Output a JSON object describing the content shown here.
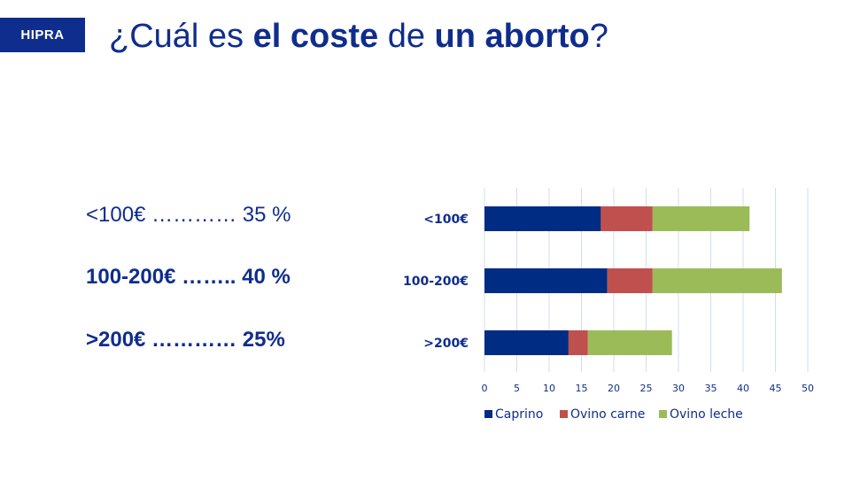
{
  "logo": "HIPRA",
  "title": {
    "p1": "¿Cuál es ",
    "p2": "el coste",
    "p3": " de ",
    "p4": "un aborto",
    "p5": "?"
  },
  "stats": [
    {
      "text": "<100€ ………… 35 %",
      "bold": false
    },
    {
      "text": "100-200€ …….. 40 %",
      "bold": true
    },
    {
      "text": ">200€ ………… 25%",
      "bold": true
    }
  ],
  "chart_data": {
    "type": "bar",
    "orientation": "horizontal",
    "stacked": true,
    "categories": [
      "<100€",
      "100-200€",
      ">200€"
    ],
    "series": [
      {
        "name": "Caprino",
        "values": [
          18,
          19,
          13
        ],
        "color": "#002c84"
      },
      {
        "name": "Ovino carne",
        "values": [
          8,
          7,
          3
        ],
        "color": "#c0504d"
      },
      {
        "name": "Ovino leche",
        "values": [
          15,
          20,
          13
        ],
        "color": "#9bbb59"
      }
    ],
    "xlim": [
      0,
      50
    ],
    "xticks": [
      "0",
      "5",
      "10",
      "15",
      "20",
      "25",
      "30",
      "35",
      "40",
      "45",
      "50"
    ],
    "grid": true,
    "legend": "bottom"
  }
}
